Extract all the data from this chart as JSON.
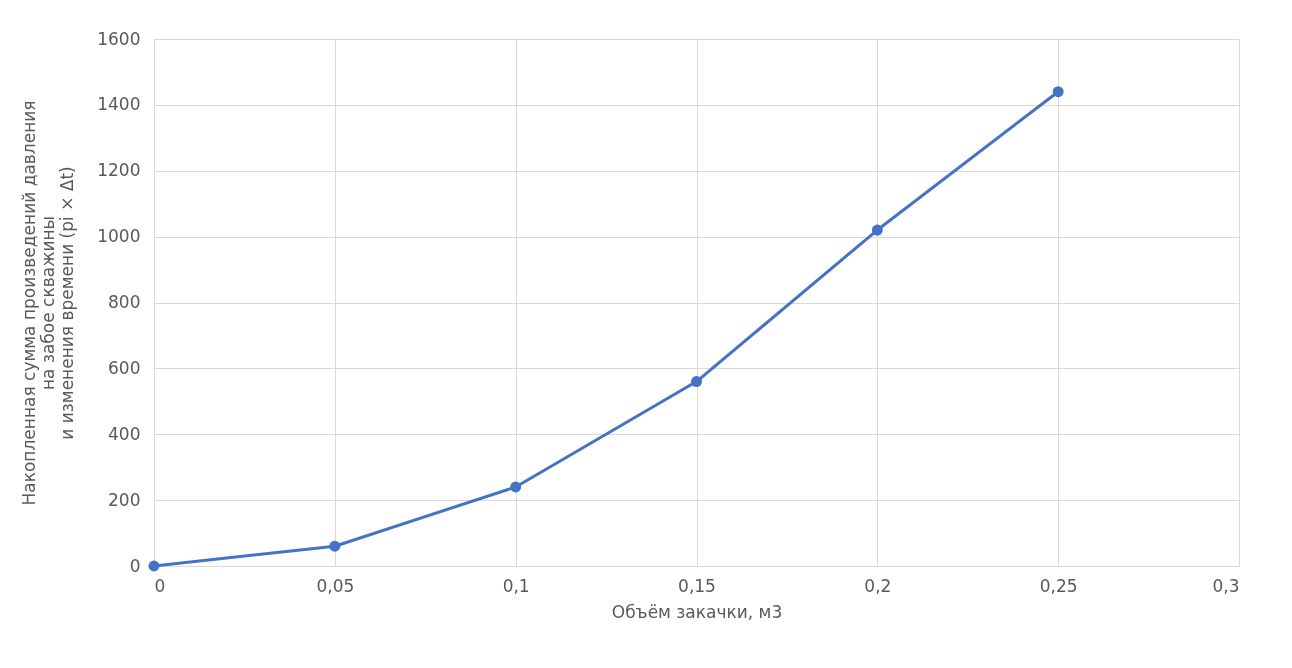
{
  "chart_data": {
    "type": "line",
    "xlabel": "Объём закачки, м3",
    "ylabel": "Накопленная сумма произведений давления\nна забое скважины\nи изменения времени (pi × Δt)",
    "x": [
      0,
      0.05,
      0.1,
      0.15,
      0.2,
      0.25
    ],
    "series": [
      {
        "color": "#4472c4",
        "values": [
          0,
          60,
          240,
          560,
          1020,
          1440
        ]
      }
    ],
    "xlim": [
      0,
      0.3
    ],
    "xticks": [
      0,
      {
        "value": 0.05,
        "label": "0,05"
      },
      {
        "value": 0.1,
        "label": "0,1"
      },
      {
        "value": 0.15,
        "label": "0,15"
      },
      {
        "value": 0.2,
        "label": "0,2"
      },
      {
        "value": 0.25,
        "label": "0,25"
      },
      {
        "value": 0.3,
        "label": "0,3"
      }
    ],
    "ylim": [
      0,
      1600
    ],
    "yticks": [
      0,
      200,
      400,
      600,
      800,
      1000,
      1200,
      1400,
      1600
    ],
    "grid": true,
    "marker": "circle",
    "line_style": "solid"
  }
}
